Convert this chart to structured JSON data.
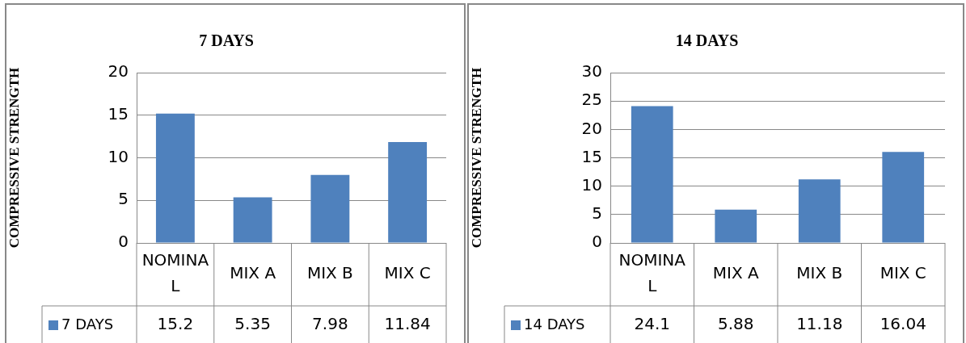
{
  "chart_data": [
    {
      "type": "bar",
      "title": "7 DAYS",
      "ylabel": "COMPRESSIVE STRENGTH",
      "categories": [
        "NOMINAL",
        "MIX A",
        "MIX B",
        "MIX C"
      ],
      "series": [
        {
          "name": "7 DAYS",
          "color": "#4f81bd",
          "values": [
            15.2,
            5.35,
            7.98,
            11.84
          ]
        }
      ],
      "ylim": [
        0,
        20
      ],
      "yticks": [
        0,
        5,
        10,
        15,
        20
      ],
      "grid": "y",
      "legend": "bottom",
      "data_labels": true
    },
    {
      "type": "bar",
      "title": "14 DAYS",
      "ylabel": "COMPRESSIVE STRENGTH",
      "categories": [
        "NOMINAL",
        "MIX A",
        "MIX B",
        "MIX C"
      ],
      "series": [
        {
          "name": "14 DAYS",
          "color": "#4f81bd",
          "values": [
            24.1,
            5.88,
            11.18,
            16.04
          ]
        }
      ],
      "ylim": [
        0,
        30
      ],
      "yticks": [
        0,
        5,
        10,
        15,
        20,
        25,
        30
      ],
      "grid": "y",
      "legend": "bottom",
      "data_labels": true
    }
  ]
}
